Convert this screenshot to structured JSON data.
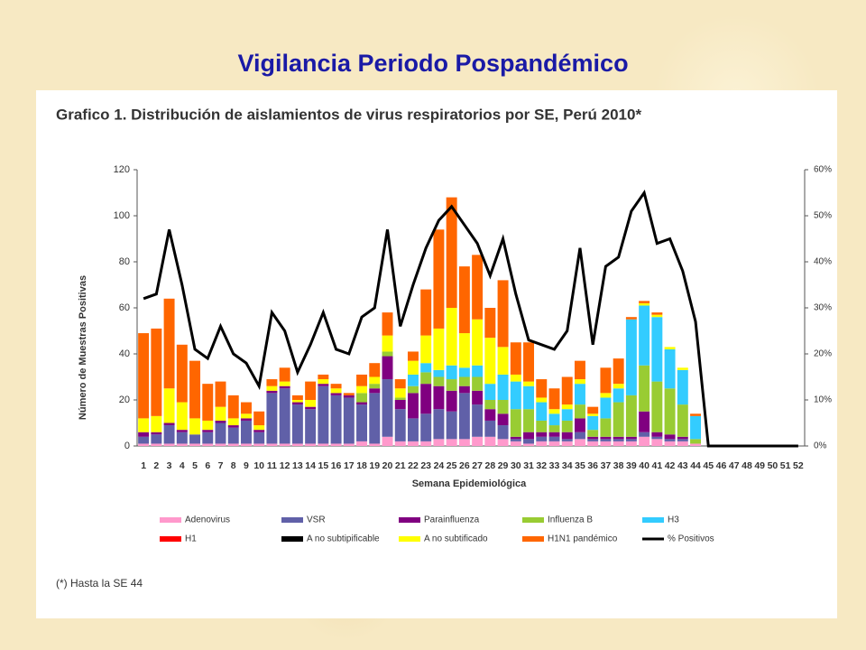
{
  "page_title": "Vigilancia Periodo Pospandémico",
  "footnote": "(*) Hasta la SE 44",
  "chart_data": {
    "type": "bar",
    "stacked": true,
    "title": "Grafico 1. Distribución de aislamientos de virus respiratorios por SE, Perú 2010*",
    "xlabel": "Semana Epidemiológica",
    "ylabel": "Número de Muestras Positivas",
    "categories": [
      "1",
      "2",
      "3",
      "4",
      "5",
      "6",
      "7",
      "8",
      "9",
      "10",
      "11",
      "12",
      "13",
      "14",
      "15",
      "16",
      "17",
      "18",
      "19",
      "20",
      "21",
      "22",
      "23",
      "24",
      "25",
      "26",
      "27",
      "28",
      "29",
      "30",
      "31",
      "32",
      "33",
      "34",
      "35",
      "36",
      "37",
      "38",
      "39",
      "40",
      "41",
      "42",
      "43",
      "44",
      "45",
      "46",
      "47",
      "48",
      "49",
      "50",
      "51",
      "52"
    ],
    "ylim": [
      0,
      120
    ],
    "yticks": [
      0,
      20,
      40,
      60,
      80,
      100,
      120
    ],
    "y2lim": [
      0,
      60
    ],
    "y2ticks": [
      {
        "value": 0,
        "label": "0%"
      },
      {
        "value": 10,
        "label": "10%"
      },
      {
        "value": 20,
        "label": "20%"
      },
      {
        "value": 30,
        "label": "30%"
      },
      {
        "value": 40,
        "label": "40%"
      },
      {
        "value": 50,
        "label": "50%"
      },
      {
        "value": 60,
        "label": "60%"
      }
    ],
    "series": [
      {
        "name": "Adenovirus",
        "color": "#ff99cc",
        "values": [
          1,
          1,
          1,
          1,
          1,
          1,
          1,
          1,
          1,
          1,
          1,
          1,
          1,
          1,
          1,
          1,
          1,
          2,
          1,
          4,
          2,
          2,
          2,
          3,
          3,
          3,
          4,
          4,
          3,
          2,
          1,
          2,
          2,
          2,
          3,
          2,
          2,
          2,
          2,
          4,
          3,
          2,
          2,
          1,
          0,
          0,
          0,
          0,
          0,
          0,
          0,
          0
        ]
      },
      {
        "name": "VSR",
        "color": "#6060a8",
        "values": [
          3,
          4,
          8,
          5,
          4,
          5,
          9,
          7,
          10,
          5,
          22,
          24,
          17,
          15,
          25,
          21,
          20,
          16,
          22,
          25,
          14,
          10,
          12,
          13,
          12,
          20,
          14,
          7,
          6,
          1,
          2,
          2,
          2,
          1,
          3,
          1,
          1,
          1,
          1,
          2,
          1,
          1,
          1,
          0,
          0,
          0,
          0,
          0,
          0,
          0,
          0,
          0
        ]
      },
      {
        "name": "Parainfluenza",
        "color": "#800080",
        "values": [
          2,
          1,
          1,
          1,
          0,
          1,
          1,
          1,
          1,
          1,
          1,
          1,
          1,
          1,
          1,
          1,
          1,
          1,
          2,
          10,
          4,
          11,
          13,
          10,
          9,
          3,
          6,
          5,
          5,
          1,
          3,
          2,
          2,
          3,
          6,
          1,
          1,
          1,
          1,
          9,
          2,
          2,
          1,
          0,
          0,
          0,
          0,
          0,
          0,
          0,
          0,
          0
        ]
      },
      {
        "name": "Influenza B",
        "color": "#99cc33",
        "values": [
          0,
          0,
          0,
          0,
          0,
          0,
          0,
          0,
          0,
          0,
          0,
          0,
          0,
          0,
          0,
          0,
          0,
          4,
          2,
          2,
          1,
          3,
          5,
          4,
          5,
          4,
          6,
          4,
          6,
          12,
          10,
          5,
          3,
          5,
          6,
          3,
          8,
          15,
          18,
          20,
          22,
          20,
          14,
          2,
          0,
          0,
          0,
          0,
          0,
          0,
          0,
          0
        ]
      },
      {
        "name": "H3",
        "color": "#33ccff",
        "values": [
          0,
          0,
          0,
          0,
          0,
          0,
          0,
          0,
          0,
          0,
          0,
          0,
          0,
          0,
          0,
          0,
          0,
          0,
          0,
          0,
          0,
          5,
          4,
          3,
          6,
          4,
          5,
          7,
          11,
          12,
          10,
          8,
          5,
          5,
          9,
          6,
          9,
          6,
          33,
          26,
          28,
          17,
          15,
          10,
          0,
          0,
          0,
          0,
          0,
          0,
          0,
          0
        ]
      },
      {
        "name": "H1",
        "color": "#ff0000",
        "values": [
          0,
          0,
          0,
          0,
          0,
          0,
          0,
          0,
          0,
          0,
          0,
          0,
          0,
          0,
          0,
          0,
          0,
          0,
          0,
          0,
          0,
          0,
          0,
          0,
          0,
          0,
          0,
          0,
          0,
          0,
          0,
          0,
          0,
          0,
          0,
          0,
          0,
          0,
          0,
          0,
          0,
          0,
          0,
          0,
          0,
          0,
          0,
          0,
          0,
          0,
          0,
          0
        ]
      },
      {
        "name": "A no subtipificable",
        "color": "#000000",
        "values": [
          0,
          0,
          0,
          0,
          0,
          0,
          0,
          0,
          0,
          0,
          0,
          0,
          0,
          0,
          0,
          0,
          0,
          0,
          0,
          0,
          0,
          0,
          0,
          0,
          0,
          0,
          0,
          0,
          0,
          0,
          0,
          0,
          0,
          0,
          0,
          0,
          0,
          0,
          0,
          0,
          0,
          0,
          0,
          0,
          0,
          0,
          0,
          0,
          0,
          0,
          0,
          0
        ]
      },
      {
        "name": "A no subtificado",
        "color": "#ffff00",
        "values": [
          6,
          7,
          15,
          12,
          7,
          4,
          6,
          3,
          2,
          2,
          2,
          2,
          1,
          3,
          2,
          2,
          0,
          3,
          3,
          7,
          4,
          6,
          12,
          18,
          25,
          15,
          20,
          20,
          12,
          3,
          2,
          2,
          2,
          2,
          2,
          1,
          2,
          2,
          0,
          1,
          1,
          1,
          1,
          0,
          0,
          0,
          0,
          0,
          0,
          0,
          0,
          0
        ]
      },
      {
        "name": "H1N1 pandémico",
        "color": "#ff6600",
        "values": [
          37,
          38,
          39,
          25,
          25,
          16,
          11,
          10,
          5,
          6,
          3,
          6,
          2,
          8,
          2,
          2,
          1,
          5,
          6,
          10,
          4,
          4,
          20,
          43,
          48,
          29,
          28,
          13,
          29,
          14,
          17,
          8,
          9,
          12,
          8,
          3,
          11,
          11,
          1,
          1,
          1,
          0,
          0,
          1,
          0,
          0,
          0,
          0,
          0,
          0,
          0,
          0
        ]
      },
      {
        "name": "% Positivos",
        "color": "#000000",
        "type": "line",
        "axis": "y2",
        "values": [
          32,
          33,
          47,
          35,
          21,
          19,
          26,
          20,
          18,
          13,
          29,
          25,
          16,
          22,
          29,
          21,
          20,
          28,
          30,
          47,
          26,
          35,
          43,
          49,
          52,
          48,
          44,
          37,
          45,
          33,
          23,
          22,
          21,
          25,
          43,
          22,
          39,
          41,
          51,
          55,
          44,
          45,
          38,
          27,
          0,
          0,
          0,
          0,
          0,
          0,
          0,
          0
        ]
      }
    ]
  }
}
